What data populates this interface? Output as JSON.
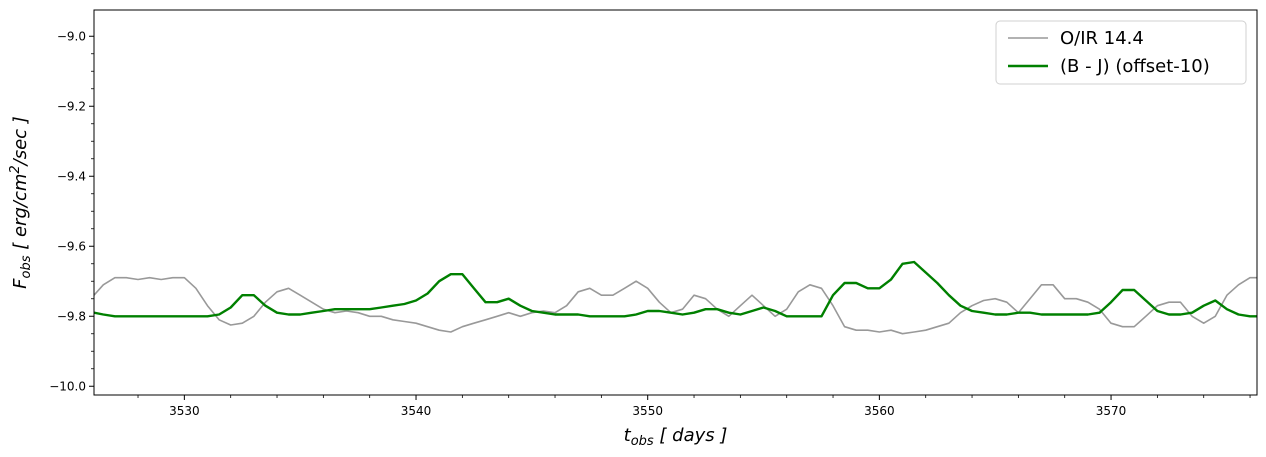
{
  "chart_data": {
    "type": "line",
    "title": "",
    "xlabel": "t_obs [ days ]",
    "ylabel": "F_obs [ erg/cm^2/sec ]",
    "xlim": [
      3526.1,
      3576.3
    ],
    "ylim": [
      -10.025,
      -8.925
    ],
    "xticks": [
      3530,
      3540,
      3550,
      3560,
      3570
    ],
    "xtick_labels": [
      "3530",
      "3540",
      "3550",
      "3560",
      "3570"
    ],
    "yticks": [
      -9.0,
      -9.2,
      -9.4,
      -9.6,
      -9.8,
      -10.0
    ],
    "ytick_labels": [
      "−9.0",
      "−9.2",
      "−9.4",
      "−9.6",
      "−9.8",
      "−10.0"
    ],
    "grid": false,
    "legend_position": "top-right",
    "series": [
      {
        "name": "O/IR 14.4",
        "color": "#999999",
        "x": [
          3526.1,
          3526.5,
          3527,
          3527.5,
          3528,
          3528.5,
          3529,
          3529.5,
          3530,
          3530.5,
          3531,
          3531.5,
          3532,
          3532.5,
          3533,
          3533.5,
          3534,
          3534.5,
          3535,
          3535.5,
          3536,
          3536.5,
          3537,
          3537.5,
          3538,
          3538.5,
          3539,
          3539.5,
          3540,
          3540.5,
          3541,
          3541.5,
          3542,
          3542.5,
          3543,
          3543.5,
          3544,
          3544.5,
          3545,
          3545.5,
          3546,
          3546.5,
          3547,
          3547.5,
          3548,
          3548.5,
          3549,
          3549.5,
          3550,
          3550.5,
          3551,
          3551.5,
          3552,
          3552.5,
          3553,
          3553.5,
          3554,
          3554.5,
          3555,
          3555.5,
          3556,
          3556.5,
          3557,
          3557.5,
          3558,
          3558.5,
          3559,
          3559.5,
          3560,
          3560.5,
          3561,
          3561.5,
          3562,
          3562.5,
          3563,
          3563.5,
          3564,
          3564.5,
          3565,
          3565.5,
          3566,
          3566.5,
          3567,
          3567.5,
          3568,
          3568.5,
          3569,
          3569.5,
          3570,
          3570.5,
          3571,
          3571.5,
          3572,
          3572.5,
          3573,
          3573.5,
          3574,
          3574.5,
          3575,
          3575.5,
          3576,
          3576.3
        ],
        "y": [
          -9.74,
          -9.71,
          -9.69,
          -9.69,
          -9.695,
          -9.69,
          -9.695,
          -9.69,
          -9.69,
          -9.72,
          -9.77,
          -9.81,
          -9.825,
          -9.82,
          -9.8,
          -9.76,
          -9.73,
          -9.72,
          -9.74,
          -9.76,
          -9.78,
          -9.79,
          -9.785,
          -9.79,
          -9.8,
          -9.8,
          -9.81,
          -9.815,
          -9.82,
          -9.83,
          -9.84,
          -9.845,
          -9.83,
          -9.82,
          -9.81,
          -9.8,
          -9.79,
          -9.8,
          -9.79,
          -9.785,
          -9.79,
          -9.77,
          -9.73,
          -9.72,
          -9.74,
          -9.74,
          -9.72,
          -9.7,
          -9.72,
          -9.76,
          -9.79,
          -9.78,
          -9.74,
          -9.75,
          -9.78,
          -9.8,
          -9.77,
          -9.74,
          -9.77,
          -9.8,
          -9.78,
          -9.73,
          -9.71,
          -9.72,
          -9.77,
          -9.83,
          -9.84,
          -9.84,
          -9.845,
          -9.84,
          -9.85,
          -9.845,
          -9.84,
          -9.83,
          -9.82,
          -9.79,
          -9.77,
          -9.755,
          -9.75,
          -9.76,
          -9.79,
          -9.75,
          -9.71,
          -9.71,
          -9.75,
          -9.75,
          -9.76,
          -9.78,
          -9.82,
          -9.83,
          -9.83,
          -9.8,
          -9.77,
          -9.76,
          -9.76,
          -9.8,
          -9.82,
          -9.8,
          -9.74,
          -9.71,
          -9.69,
          -9.69
        ],
        "line_width": 1.6
      },
      {
        "name": "(B - J)  (offset-10)",
        "color": "#008000",
        "x": [
          3526.1,
          3526.5,
          3527,
          3527.5,
          3528,
          3528.5,
          3529,
          3529.5,
          3530,
          3530.5,
          3531,
          3531.5,
          3532,
          3532.5,
          3533,
          3533.5,
          3534,
          3534.5,
          3535,
          3535.5,
          3536,
          3536.5,
          3537,
          3537.5,
          3538,
          3538.5,
          3539,
          3539.5,
          3540,
          3540.5,
          3541,
          3541.5,
          3542,
          3542.5,
          3543,
          3543.5,
          3544,
          3544.5,
          3545,
          3545.5,
          3546,
          3546.5,
          3547,
          3547.5,
          3548,
          3548.5,
          3549,
          3549.5,
          3550,
          3550.5,
          3551,
          3551.5,
          3552,
          3552.5,
          3553,
          3553.5,
          3554,
          3554.5,
          3555,
          3555.5,
          3556,
          3556.5,
          3557,
          3557.5,
          3558,
          3558.5,
          3559,
          3559.5,
          3560,
          3560.5,
          3561,
          3561.5,
          3562,
          3562.5,
          3563,
          3563.5,
          3564,
          3564.5,
          3565,
          3565.5,
          3566,
          3566.5,
          3567,
          3567.5,
          3568,
          3568.5,
          3569,
          3569.5,
          3570,
          3570.5,
          3571,
          3571.5,
          3572,
          3572.5,
          3573,
          3573.5,
          3574,
          3574.5,
          3575,
          3575.5,
          3576,
          3576.3
        ],
        "y": [
          -9.79,
          -9.795,
          -9.8,
          -9.8,
          -9.8,
          -9.8,
          -9.8,
          -9.8,
          -9.8,
          -9.8,
          -9.8,
          -9.795,
          -9.775,
          -9.74,
          -9.74,
          -9.77,
          -9.79,
          -9.795,
          -9.795,
          -9.79,
          -9.785,
          -9.78,
          -9.78,
          -9.78,
          -9.78,
          -9.775,
          -9.77,
          -9.765,
          -9.755,
          -9.735,
          -9.7,
          -9.68,
          -9.68,
          -9.72,
          -9.76,
          -9.76,
          -9.75,
          -9.77,
          -9.785,
          -9.79,
          -9.795,
          -9.795,
          -9.795,
          -9.8,
          -9.8,
          -9.8,
          -9.8,
          -9.795,
          -9.785,
          -9.785,
          -9.79,
          -9.795,
          -9.79,
          -9.78,
          -9.78,
          -9.79,
          -9.795,
          -9.785,
          -9.775,
          -9.785,
          -9.8,
          -9.8,
          -9.8,
          -9.8,
          -9.74,
          -9.705,
          -9.705,
          -9.72,
          -9.72,
          -9.695,
          -9.65,
          -9.645,
          -9.675,
          -9.705,
          -9.74,
          -9.77,
          -9.785,
          -9.79,
          -9.795,
          -9.795,
          -9.79,
          -9.79,
          -9.795,
          -9.795,
          -9.795,
          -9.795,
          -9.795,
          -9.79,
          -9.76,
          -9.725,
          -9.725,
          -9.755,
          -9.785,
          -9.795,
          -9.795,
          -9.79,
          -9.77,
          -9.755,
          -9.78,
          -9.795,
          -9.8,
          -9.8
        ],
        "line_width": 2.4
      }
    ]
  }
}
